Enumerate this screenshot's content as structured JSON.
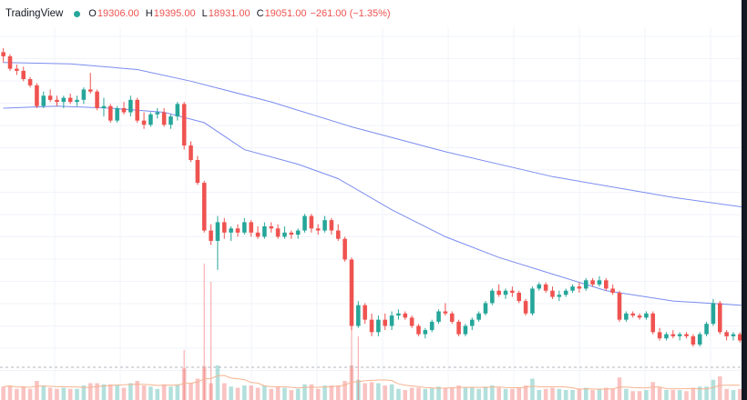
{
  "header": {
    "brand": "TradingView",
    "open_label": "O",
    "open": "19306.00",
    "high_label": "H",
    "high": "19395.00",
    "low_label": "L",
    "low": "18931.00",
    "close_label": "C",
    "close": "19051.00",
    "change": "−261.00 (−1.35%)"
  },
  "colors": {
    "up": "#26a69a",
    "down": "#ef5350",
    "ma_fast": "#7b8cf0",
    "ma_slow": "#7b8cf0",
    "volume_ma": "#f5b38f",
    "grid": "#f0f3fa",
    "status_dot": "#26a69a"
  },
  "chart_data": {
    "type": "candlestick",
    "grid": true,
    "y_range": [
      18000,
      26000
    ],
    "candles": [
      [
        25400,
        25500,
        25150,
        25300
      ],
      [
        25300,
        25350,
        24950,
        25000
      ],
      [
        25000,
        25100,
        24850,
        24950
      ],
      [
        24950,
        25050,
        24700,
        24750
      ],
      [
        24750,
        24800,
        24550,
        24600
      ],
      [
        24600,
        24650,
        24050,
        24100
      ],
      [
        24100,
        24450,
        24050,
        24350
      ],
      [
        24350,
        24500,
        24200,
        24250
      ],
      [
        24250,
        24350,
        24100,
        24200
      ],
      [
        24200,
        24350,
        24050,
        24300
      ],
      [
        24300,
        24400,
        24150,
        24200
      ],
      [
        24200,
        24350,
        24100,
        24250
      ],
      [
        24250,
        24550,
        24150,
        24500
      ],
      [
        24500,
        24900,
        24400,
        24450
      ],
      [
        24450,
        24500,
        24000,
        24050
      ],
      [
        24050,
        24300,
        23850,
        24100
      ],
      [
        24100,
        24150,
        23700,
        23750
      ],
      [
        23750,
        24100,
        23700,
        24050
      ],
      [
        24050,
        24200,
        23900,
        23950
      ],
      [
        23950,
        24350,
        23850,
        24250
      ],
      [
        24250,
        24300,
        23700,
        23750
      ],
      [
        23750,
        23950,
        23550,
        23650
      ],
      [
        23650,
        23950,
        23600,
        23900
      ],
      [
        23900,
        24050,
        23800,
        23950
      ],
      [
        23950,
        24050,
        23600,
        23650
      ],
      [
        23650,
        23900,
        23550,
        23850
      ],
      [
        23850,
        24200,
        23750,
        24150
      ],
      [
        24150,
        24200,
        23050,
        23150
      ],
      [
        23150,
        23250,
        22750,
        22800
      ],
      [
        22800,
        22900,
        22200,
        22250
      ],
      [
        22250,
        22300,
        21050,
        21100
      ],
      [
        21100,
        21250,
        20750,
        20850
      ],
      [
        20850,
        21450,
        20150,
        21300
      ],
      [
        21300,
        21400,
        20900,
        21050
      ],
      [
        21050,
        21200,
        20850,
        21150
      ],
      [
        21150,
        21250,
        20950,
        21050
      ],
      [
        21050,
        21400,
        21000,
        21300
      ],
      [
        21300,
        21350,
        20950,
        21050
      ],
      [
        21050,
        21200,
        20900,
        20950
      ],
      [
        20950,
        21300,
        20900,
        21200
      ],
      [
        21200,
        21300,
        21050,
        21150
      ],
      [
        21150,
        21250,
        20900,
        20950
      ],
      [
        20950,
        21200,
        20900,
        21050
      ],
      [
        21050,
        21100,
        20900,
        21000
      ],
      [
        21000,
        21150,
        20900,
        21100
      ],
      [
        21100,
        21500,
        21050,
        21450
      ],
      [
        21450,
        21500,
        21050,
        21150
      ],
      [
        21150,
        21250,
        21000,
        21100
      ],
      [
        21100,
        21450,
        21050,
        21350
      ],
      [
        21350,
        21400,
        21000,
        21100
      ],
      [
        21100,
        21250,
        20850,
        20900
      ],
      [
        20900,
        20950,
        20350,
        20400
      ],
      [
        20400,
        20450,
        18700,
        18800
      ],
      [
        18800,
        19400,
        18750,
        19300
      ],
      [
        19300,
        19350,
        18850,
        18950
      ],
      [
        18950,
        19100,
        18550,
        18650
      ],
      [
        18650,
        19050,
        18550,
        18950
      ],
      [
        18950,
        19100,
        18700,
        18800
      ],
      [
        18800,
        19150,
        18700,
        19050
      ],
      [
        19050,
        19200,
        18950,
        19100
      ],
      [
        19100,
        19150,
        18950,
        19000
      ],
      [
        19000,
        19050,
        18750,
        18800
      ],
      [
        18800,
        18850,
        18550,
        18600
      ],
      [
        18600,
        18750,
        18500,
        18700
      ],
      [
        18700,
        18950,
        18650,
        18900
      ],
      [
        18900,
        19200,
        18850,
        19150
      ],
      [
        19150,
        19350,
        19050,
        19100
      ],
      [
        19100,
        19150,
        18850,
        18900
      ],
      [
        18900,
        18950,
        18550,
        18600
      ],
      [
        18600,
        18850,
        18550,
        18800
      ],
      [
        18800,
        19000,
        18700,
        18950
      ],
      [
        18950,
        19150,
        18900,
        19100
      ],
      [
        19100,
        19400,
        19050,
        19350
      ],
      [
        19350,
        19700,
        19300,
        19650
      ],
      [
        19650,
        19800,
        19500,
        19550
      ],
      [
        19550,
        19700,
        19450,
        19650
      ],
      [
        19650,
        19750,
        19500,
        19600
      ],
      [
        19600,
        19650,
        19350,
        19400
      ],
      [
        19400,
        19450,
        19050,
        19100
      ],
      [
        19100,
        19750,
        19050,
        19700
      ],
      [
        19700,
        19850,
        19650,
        19800
      ],
      [
        19800,
        19850,
        19600,
        19650
      ],
      [
        19650,
        19750,
        19450,
        19500
      ],
      [
        19500,
        19650,
        19400,
        19550
      ],
      [
        19550,
        19700,
        19500,
        19650
      ],
      [
        19650,
        19800,
        19600,
        19750
      ],
      [
        19750,
        19850,
        19600,
        19700
      ],
      [
        19700,
        19950,
        19650,
        19900
      ],
      [
        19900,
        19950,
        19750,
        19800
      ],
      [
        19800,
        20000,
        19750,
        19900
      ],
      [
        19900,
        19950,
        19650,
        19700
      ],
      [
        19700,
        19800,
        19550,
        19600
      ],
      [
        19600,
        19650,
        18900,
        18950
      ],
      [
        18950,
        19150,
        18900,
        19100
      ],
      [
        19100,
        19150,
        19000,
        19050
      ],
      [
        19050,
        19100,
        18950,
        19000
      ],
      [
        19000,
        19150,
        18950,
        19100
      ],
      [
        19100,
        19150,
        18600,
        18650
      ],
      [
        18650,
        18750,
        18450,
        18500
      ],
      [
        18500,
        18650,
        18450,
        18600
      ],
      [
        18600,
        18700,
        18500,
        18550
      ],
      [
        18550,
        18650,
        18450,
        18600
      ],
      [
        18600,
        18650,
        18500,
        18550
      ],
      [
        18550,
        18600,
        18300,
        18350
      ],
      [
        18350,
        18650,
        18300,
        18600
      ],
      [
        18600,
        18900,
        18550,
        18850
      ],
      [
        18850,
        19450,
        18800,
        19350
      ],
      [
        19350,
        19400,
        18600,
        18650
      ],
      [
        18650,
        18700,
        18450,
        18550
      ],
      [
        18550,
        18650,
        18450,
        18600
      ],
      [
        18600,
        18650,
        18400,
        18450
      ]
    ],
    "ma_fast": [
      [
        0,
        24050
      ],
      [
        8,
        24100
      ],
      [
        16,
        24050
      ],
      [
        24,
        23950
      ],
      [
        30,
        23700
      ],
      [
        36,
        23050
      ],
      [
        44,
        22700
      ],
      [
        50,
        22350
      ],
      [
        58,
        21600
      ],
      [
        66,
        20950
      ],
      [
        74,
        20450
      ],
      [
        82,
        20050
      ],
      [
        90,
        19650
      ],
      [
        100,
        19400
      ],
      [
        110,
        19300
      ],
      [
        120,
        19150
      ],
      [
        132,
        19250
      ],
      [
        144,
        19300
      ],
      [
        156,
        19150
      ]
    ],
    "ma_slow": [
      [
        0,
        25150
      ],
      [
        10,
        25120
      ],
      [
        20,
        24980
      ],
      [
        28,
        24700
      ],
      [
        40,
        24200
      ],
      [
        52,
        23600
      ],
      [
        66,
        23000
      ],
      [
        82,
        22400
      ],
      [
        100,
        21900
      ],
      [
        120,
        21450
      ],
      [
        140,
        21000
      ],
      [
        156,
        20550
      ]
    ]
  }
}
